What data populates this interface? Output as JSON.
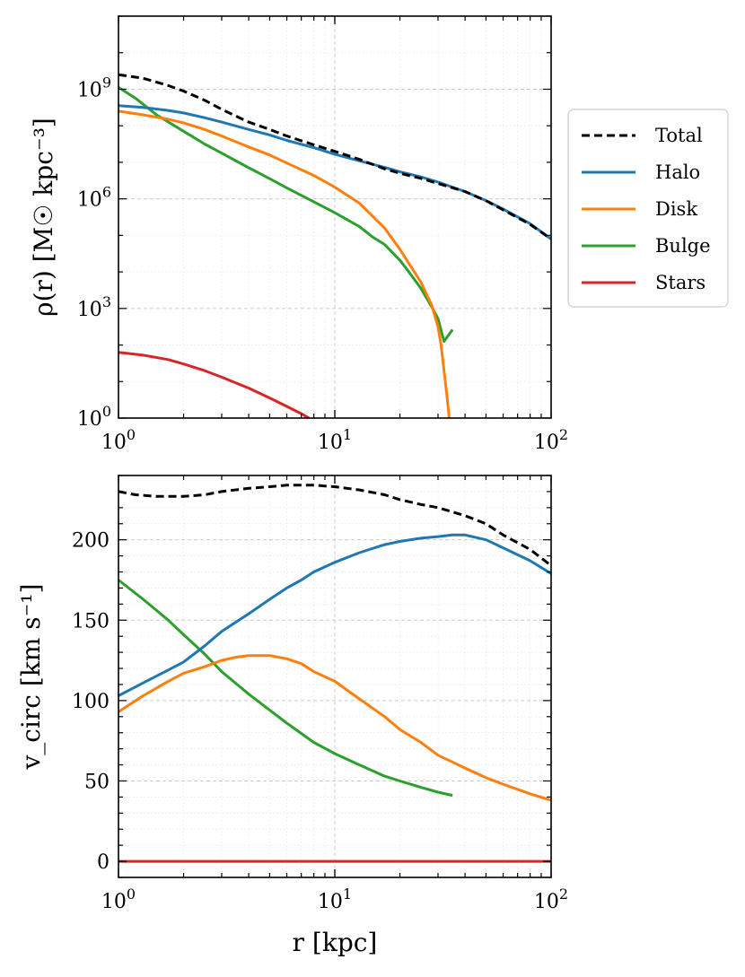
{
  "colors": {
    "total": "#000000",
    "halo": "#1f77b4",
    "disk": "#ff7f0e",
    "bulge": "#2ca02c",
    "stars": "#d62728",
    "grid_major": "#cccccc",
    "grid_minor": "#ececec"
  },
  "legend": {
    "items": [
      {
        "key": "total",
        "label": "Total",
        "dashed": true
      },
      {
        "key": "halo",
        "label": "Halo",
        "dashed": false
      },
      {
        "key": "disk",
        "label": "Disk",
        "dashed": false
      },
      {
        "key": "bulge",
        "label": "Bulge",
        "dashed": false
      },
      {
        "key": "stars",
        "label": "Stars",
        "dashed": false
      }
    ]
  },
  "chart_data": [
    {
      "type": "line",
      "name": "density",
      "xscale": "log",
      "yscale": "log",
      "xlim": [
        1,
        100
      ],
      "ylim_exp": [
        0,
        11
      ],
      "ylabel": "ρ(r) [M☉ kpc⁻³]",
      "x_ticks": [
        {
          "base": "10",
          "exp": "0",
          "value": 1
        },
        {
          "base": "10",
          "exp": "1",
          "value": 10
        },
        {
          "base": "10",
          "exp": "2",
          "value": 100
        }
      ],
      "y_ticks": [
        {
          "base": "10",
          "exp": "0",
          "value": 0
        },
        {
          "base": "10",
          "exp": "3",
          "value": 3
        },
        {
          "base": "10",
          "exp": "6",
          "value": 6
        },
        {
          "base": "10",
          "exp": "9",
          "value": 9
        }
      ],
      "series": [
        {
          "key": "total",
          "name": "Total",
          "log10_y": true,
          "x": [
            1,
            1.3,
            1.7,
            2,
            2.5,
            3,
            4,
            5,
            6,
            8,
            10,
            13,
            17,
            20,
            25,
            30,
            40,
            50,
            60,
            80,
            100
          ],
          "y": [
            9.4,
            9.3,
            9.1,
            8.95,
            8.7,
            8.45,
            8.1,
            7.9,
            7.72,
            7.48,
            7.3,
            7.08,
            6.82,
            6.7,
            6.56,
            6.42,
            6.2,
            5.95,
            5.7,
            5.3,
            4.9
          ]
        },
        {
          "key": "halo",
          "name": "Halo",
          "log10_y": true,
          "x": [
            1,
            1.3,
            1.7,
            2,
            2.5,
            3,
            4,
            5,
            6,
            8,
            10,
            13,
            17,
            20,
            25,
            30,
            40,
            50,
            60,
            80,
            100
          ],
          "y": [
            8.55,
            8.5,
            8.42,
            8.35,
            8.22,
            8.1,
            7.9,
            7.75,
            7.6,
            7.4,
            7.22,
            7.04,
            6.86,
            6.74,
            6.6,
            6.46,
            6.2,
            5.95,
            5.72,
            5.32,
            4.9
          ]
        },
        {
          "key": "disk",
          "name": "Disk",
          "log10_y": true,
          "x": [
            1,
            1.3,
            1.7,
            2,
            2.5,
            3,
            4,
            5,
            6,
            8,
            10,
            13,
            17,
            20,
            25,
            28,
            30,
            31,
            32,
            33,
            33.8
          ],
          "y": [
            8.4,
            8.3,
            8.18,
            8.08,
            7.9,
            7.72,
            7.42,
            7.2,
            6.98,
            6.64,
            6.32,
            5.88,
            5.2,
            4.62,
            3.72,
            3.1,
            2.5,
            2.0,
            1.3,
            0.6,
            0.0
          ]
        },
        {
          "key": "bulge",
          "name": "Bulge",
          "log10_y": true,
          "x": [
            1,
            1.2,
            1.5,
            2,
            2.5,
            3,
            4,
            5,
            6,
            8,
            10,
            13,
            15,
            17,
            20,
            22,
            25,
            28,
            30,
            32,
            35
          ],
          "y": [
            9.05,
            8.75,
            8.3,
            7.85,
            7.5,
            7.25,
            6.85,
            6.55,
            6.3,
            5.92,
            5.62,
            5.24,
            4.95,
            4.75,
            4.32,
            4.0,
            3.55,
            3.05,
            2.72,
            2.1,
            2.42
          ]
        },
        {
          "key": "stars",
          "name": "Stars",
          "log10_y": true,
          "x": [
            1,
            1.3,
            1.7,
            2,
            2.5,
            3,
            4,
            5,
            6,
            7,
            7.6
          ],
          "y": [
            1.8,
            1.72,
            1.6,
            1.48,
            1.3,
            1.12,
            0.82,
            0.55,
            0.32,
            0.12,
            0.0
          ]
        }
      ]
    },
    {
      "type": "line",
      "name": "circular velocity",
      "xscale": "log",
      "yscale": "linear",
      "xlim": [
        1,
        100
      ],
      "ylim": [
        -10,
        240
      ],
      "xlabel": "r [kpc]",
      "ylabel": "v_circ [km s⁻¹]",
      "x_ticks": [
        {
          "base": "10",
          "exp": "0",
          "value": 1
        },
        {
          "base": "10",
          "exp": "1",
          "value": 10
        },
        {
          "base": "10",
          "exp": "2",
          "value": 100
        }
      ],
      "y_ticks": [
        {
          "label": "0",
          "value": 0
        },
        {
          "label": "50",
          "value": 50
        },
        {
          "label": "100",
          "value": 100
        },
        {
          "label": "150",
          "value": 150
        },
        {
          "label": "200",
          "value": 200
        }
      ],
      "series": [
        {
          "key": "total",
          "name": "Total",
          "x": [
            1,
            1.2,
            1.5,
            2,
            2.5,
            3,
            4,
            5,
            6,
            7,
            8,
            10,
            13,
            17,
            20,
            25,
            30,
            40,
            50,
            60,
            80,
            100
          ],
          "y": [
            230,
            228,
            227,
            227,
            228,
            230,
            232,
            233,
            234,
            234,
            234,
            233,
            231,
            228,
            225,
            222,
            220,
            215,
            210,
            203,
            194,
            184
          ]
        },
        {
          "key": "halo",
          "name": "Halo",
          "x": [
            1,
            1.3,
            1.7,
            2,
            2.5,
            3,
            4,
            5,
            6,
            7,
            8,
            10,
            13,
            17,
            20,
            25,
            30,
            35,
            40,
            50,
            60,
            80,
            100
          ],
          "y": [
            103,
            111,
            119,
            124,
            134,
            143,
            154,
            163,
            170,
            175,
            180,
            186,
            192,
            197,
            199,
            201,
            202,
            203,
            203,
            200,
            195,
            187,
            179
          ]
        },
        {
          "key": "disk",
          "name": "Disk",
          "x": [
            1,
            1.3,
            1.7,
            2,
            2.5,
            3,
            3.5,
            4,
            4.5,
            5,
            6,
            7,
            8,
            10,
            13,
            17,
            20,
            25,
            30,
            40,
            50,
            60,
            80,
            100
          ],
          "y": [
            93,
            103,
            112,
            117,
            121,
            125,
            127,
            128,
            128,
            128,
            126,
            123,
            118,
            112,
            101,
            90,
            82,
            74,
            66,
            58,
            52,
            48,
            42,
            38
          ]
        },
        {
          "key": "bulge",
          "name": "Bulge",
          "x": [
            1,
            1.3,
            1.7,
            2,
            2.5,
            3,
            4,
            5,
            6,
            8,
            10,
            13,
            17,
            20,
            25,
            30,
            35
          ],
          "y": [
            175,
            163,
            150,
            141,
            129,
            118,
            104,
            94,
            86,
            74,
            67,
            60,
            53,
            50,
            46,
            43,
            41
          ]
        },
        {
          "key": "stars",
          "name": "Stars",
          "x": [
            1,
            100
          ],
          "y": [
            0,
            0
          ]
        }
      ]
    }
  ]
}
